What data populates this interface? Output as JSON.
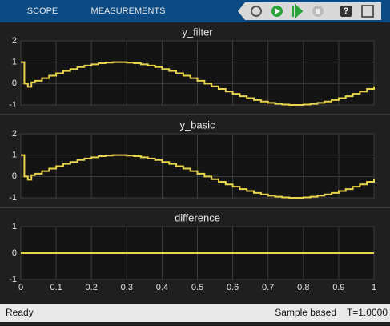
{
  "toolbar": {
    "tabs": [
      "SCOPE",
      "MEASUREMENTS"
    ]
  },
  "status": {
    "state": "Ready",
    "mode": "Sample based",
    "time": "T=1.0000"
  },
  "chart_data": [
    {
      "type": "stairs",
      "title": "y_filter",
      "color": "#e8d44d",
      "grid": true,
      "x": [
        0,
        0.01,
        0.02,
        0.03,
        0.04,
        0.06,
        0.08,
        0.1,
        0.12,
        0.14,
        0.16,
        0.18,
        0.2,
        0.22,
        0.24,
        0.26,
        0.28,
        0.3,
        0.32,
        0.34,
        0.36,
        0.38,
        0.4,
        0.42,
        0.44,
        0.46,
        0.48,
        0.5,
        0.52,
        0.54,
        0.56,
        0.58,
        0.6,
        0.62,
        0.64,
        0.66,
        0.68,
        0.7,
        0.72,
        0.74,
        0.76,
        0.78,
        0.8,
        0.82,
        0.84,
        0.86,
        0.88,
        0.9,
        0.92,
        0.94,
        0.96,
        0.98,
        1
      ],
      "values": [
        1,
        0,
        -0.15,
        0.06,
        0.13,
        0.25,
        0.37,
        0.48,
        0.59,
        0.68,
        0.77,
        0.84,
        0.9,
        0.95,
        0.98,
        1,
        1,
        0.98,
        0.95,
        0.9,
        0.84,
        0.77,
        0.68,
        0.59,
        0.48,
        0.37,
        0.25,
        0.13,
        0,
        -0.13,
        -0.25,
        -0.37,
        -0.48,
        -0.59,
        -0.68,
        -0.77,
        -0.84,
        -0.9,
        -0.95,
        -0.98,
        -1,
        -1,
        -0.98,
        -0.95,
        -0.9,
        -0.84,
        -0.77,
        -0.68,
        -0.59,
        -0.48,
        -0.37,
        -0.25,
        -0.13
      ],
      "xlim": [
        0,
        1
      ],
      "ylim": [
        -1,
        2
      ],
      "yticks": [
        -1,
        0,
        1,
        2
      ],
      "xticks": [
        0,
        0.1,
        0.2,
        0.3,
        0.4,
        0.5,
        0.6,
        0.7,
        0.8,
        0.9,
        1
      ],
      "xtick_labels": false
    },
    {
      "type": "stairs",
      "title": "y_basic",
      "color": "#e8d44d",
      "grid": true,
      "x": [
        0,
        0.01,
        0.02,
        0.03,
        0.04,
        0.06,
        0.08,
        0.1,
        0.12,
        0.14,
        0.16,
        0.18,
        0.2,
        0.22,
        0.24,
        0.26,
        0.28,
        0.3,
        0.32,
        0.34,
        0.36,
        0.38,
        0.4,
        0.42,
        0.44,
        0.46,
        0.48,
        0.5,
        0.52,
        0.54,
        0.56,
        0.58,
        0.6,
        0.62,
        0.64,
        0.66,
        0.68,
        0.7,
        0.72,
        0.74,
        0.76,
        0.78,
        0.8,
        0.82,
        0.84,
        0.86,
        0.88,
        0.9,
        0.92,
        0.94,
        0.96,
        0.98,
        1
      ],
      "values": [
        1,
        0,
        -0.15,
        0.06,
        0.13,
        0.25,
        0.37,
        0.48,
        0.59,
        0.68,
        0.77,
        0.84,
        0.9,
        0.95,
        0.98,
        1,
        1,
        0.98,
        0.95,
        0.9,
        0.84,
        0.77,
        0.68,
        0.59,
        0.48,
        0.37,
        0.25,
        0.13,
        0,
        -0.13,
        -0.25,
        -0.37,
        -0.48,
        -0.59,
        -0.68,
        -0.77,
        -0.84,
        -0.9,
        -0.95,
        -0.98,
        -1,
        -1,
        -0.98,
        -0.95,
        -0.9,
        -0.84,
        -0.77,
        -0.68,
        -0.59,
        -0.48,
        -0.37,
        -0.25,
        -0.13
      ],
      "xlim": [
        0,
        1
      ],
      "ylim": [
        -1,
        2
      ],
      "yticks": [
        -1,
        0,
        1,
        2
      ],
      "xticks": [
        0,
        0.1,
        0.2,
        0.3,
        0.4,
        0.5,
        0.6,
        0.7,
        0.8,
        0.9,
        1
      ],
      "xtick_labels": false
    },
    {
      "type": "stairs",
      "title": "difference",
      "color": "#e8d44d",
      "grid": true,
      "x": [
        0,
        1
      ],
      "values": [
        0,
        0
      ],
      "xlim": [
        0,
        1
      ],
      "ylim": [
        -1,
        1
      ],
      "yticks": [
        -1,
        0,
        1
      ],
      "xticks": [
        0,
        0.1,
        0.2,
        0.3,
        0.4,
        0.5,
        0.6,
        0.7,
        0.8,
        0.9,
        1
      ],
      "xtick_labels": true
    }
  ]
}
